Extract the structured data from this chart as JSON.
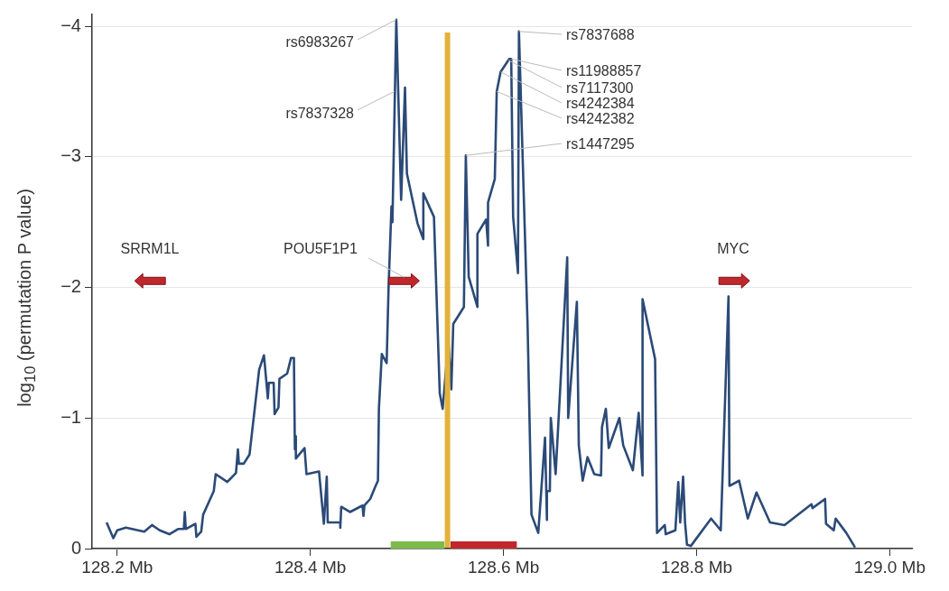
{
  "chart_data": {
    "type": "line",
    "ylabel": "log$_{10}$ (permutation P value)",
    "xlim": [
      128.174,
      129.023
    ],
    "ylim": [
      0,
      -4.09
    ],
    "xticks": [
      {
        "value": 128.2,
        "label": "128.2 Mb"
      },
      {
        "value": 128.4,
        "label": "128.4 Mb"
      },
      {
        "value": 128.6,
        "label": "128.6 Mb"
      },
      {
        "value": 128.8,
        "label": "128.8 Mb"
      },
      {
        "value": 129.0,
        "label": "129.0 Mb"
      }
    ],
    "yticks": [
      0,
      {
        "value": -1,
        "label": "−1"
      },
      {
        "value": -2,
        "label": "−2"
      },
      {
        "value": -3,
        "label": "−3"
      },
      {
        "value": -4,
        "label": "−4"
      }
    ],
    "grid": "y",
    "legend": false,
    "marker": "none",
    "line_style": "solid",
    "series": [
      {
        "color": "#2b4a77",
        "x": [
          128.189,
          128.196,
          128.2,
          128.209,
          128.228,
          128.236,
          128.244,
          128.254,
          128.263,
          128.269,
          128.27,
          128.271,
          128.281,
          128.282,
          128.287,
          128.289,
          128.3,
          128.302,
          128.314,
          128.323,
          128.325,
          128.326,
          128.331,
          128.337,
          128.347,
          128.352,
          128.356,
          128.357,
          128.362,
          128.363,
          128.367,
          128.368,
          128.376,
          128.38,
          128.383,
          128.384,
          128.385,
          128.385,
          128.394,
          128.396,
          128.409,
          128.414,
          128.417,
          128.418,
          128.431,
          128.431,
          128.432,
          128.441,
          128.454,
          128.455,
          128.456,
          128.462,
          128.467,
          128.47,
          128.471,
          128.474,
          128.479,
          128.481,
          128.484,
          128.485,
          128.489,
          128.494,
          128.498,
          128.5,
          128.511,
          128.517,
          128.517,
          128.528,
          128.534,
          128.537,
          128.543,
          128.546,
          128.548,
          128.559,
          128.561,
          128.564,
          128.573,
          128.573,
          128.582,
          128.584,
          128.584,
          128.591,
          128.593,
          128.597,
          128.606,
          128.608,
          128.61,
          128.615,
          128.616,
          128.625,
          128.629,
          128.636,
          128.643,
          128.645,
          128.645,
          128.648,
          128.649,
          128.654,
          128.666,
          128.667,
          128.676,
          128.678,
          128.682,
          128.687,
          128.694,
          128.701,
          128.702,
          128.706,
          128.709,
          128.72,
          128.724,
          128.734,
          128.74,
          128.744,
          128.744,
          128.757,
          128.759,
          128.767,
          128.768,
          128.778,
          128.781,
          128.783,
          128.786,
          128.788,
          128.79,
          128.794,
          128.815,
          128.825,
          128.833,
          128.834,
          128.844,
          128.853,
          128.862,
          128.876,
          128.891,
          128.919,
          128.92,
          128.933,
          128.934,
          128.942,
          128.944,
          128.955,
          128.964
        ],
        "values": [
          -0.2,
          -0.08,
          -0.14,
          -0.16,
          -0.13,
          -0.18,
          -0.14,
          -0.11,
          -0.15,
          -0.15,
          -0.28,
          -0.15,
          -0.19,
          -0.09,
          -0.13,
          -0.26,
          -0.44,
          -0.57,
          -0.51,
          -0.58,
          -0.76,
          -0.65,
          -0.65,
          -0.72,
          -1.37,
          -1.48,
          -1.15,
          -1.27,
          -1.27,
          -1.03,
          -1.08,
          -1.3,
          -1.34,
          -1.46,
          -1.46,
          -0.76,
          -0.86,
          -0.69,
          -0.77,
          -0.57,
          -0.59,
          -0.19,
          -0.55,
          -0.2,
          -0.2,
          -0.16,
          -0.32,
          -0.28,
          -0.33,
          -0.25,
          -0.33,
          -0.38,
          -0.47,
          -0.52,
          -1.07,
          -1.49,
          -1.42,
          -2.0,
          -2.62,
          -2.5,
          -4.05,
          -2.67,
          -3.53,
          -2.87,
          -2.49,
          -2.37,
          -2.72,
          -2.54,
          -1.19,
          -1.07,
          -1.59,
          -1.22,
          -1.72,
          -1.85,
          -3.01,
          -2.08,
          -1.85,
          -2.41,
          -2.52,
          -2.32,
          -2.65,
          -2.83,
          -3.5,
          -3.65,
          -3.75,
          -3.75,
          -2.54,
          -2.11,
          -3.96,
          -1.7,
          -0.26,
          -0.12,
          -0.85,
          -0.22,
          -0.44,
          -0.44,
          -1.0,
          -0.57,
          -2.23,
          -1.0,
          -1.89,
          -0.79,
          -0.52,
          -0.7,
          -0.57,
          -0.56,
          -0.93,
          -1.07,
          -0.77,
          -1.0,
          -0.79,
          -0.6,
          -1.04,
          -0.56,
          -1.91,
          -1.45,
          -0.12,
          -0.18,
          -0.11,
          -0.14,
          -0.51,
          -0.2,
          -0.55,
          -0.2,
          -0.03,
          -0.02,
          -0.23,
          -0.14,
          -1.93,
          -0.48,
          -0.52,
          -0.23,
          -0.43,
          -0.2,
          -0.18,
          -0.34,
          -0.31,
          -0.38,
          -0.19,
          -0.14,
          -0.23,
          -0.12,
          -0.01
        ]
      },
      {
        "type": "area",
        "color": "#7cba4a",
        "x": [
          128.483,
          128.539
        ],
        "values": [
          -0.055,
          -0.055
        ]
      },
      {
        "type": "area",
        "color": "#c0272d",
        "x": [
          128.545,
          128.614
        ],
        "values": [
          -0.055,
          -0.055
        ]
      }
    ],
    "ref_lines": [
      {
        "axis": "x",
        "value": 128.542,
        "color": "#e3b23c"
      }
    ],
    "annotations": [
      {
        "text": "rs6983267",
        "x": 128.489,
        "y": -4.05
      },
      {
        "text": "rs7837328",
        "x": 128.487,
        "y": -3.5
      },
      {
        "text": "rs7837688",
        "x": 128.616,
        "y": -3.96
      },
      {
        "text": "rs11988857",
        "x": 128.608,
        "y": -3.75
      },
      {
        "text": "rs7117300",
        "x": 128.605,
        "y": -3.74
      },
      {
        "text": "rs4242384",
        "x": 128.597,
        "y": -3.65
      },
      {
        "text": "rs4242382",
        "x": 128.593,
        "y": -3.5
      },
      {
        "text": "rs1447295",
        "x": 128.561,
        "y": -3.01
      },
      {
        "text": "SRRM1L",
        "x": 128.234,
        "y": -2.05
      },
      {
        "text": "POU5F1P1",
        "x": 128.497,
        "y": -2.05
      },
      {
        "text": "MYC",
        "x": 128.839,
        "y": -2.05
      }
    ]
  }
}
